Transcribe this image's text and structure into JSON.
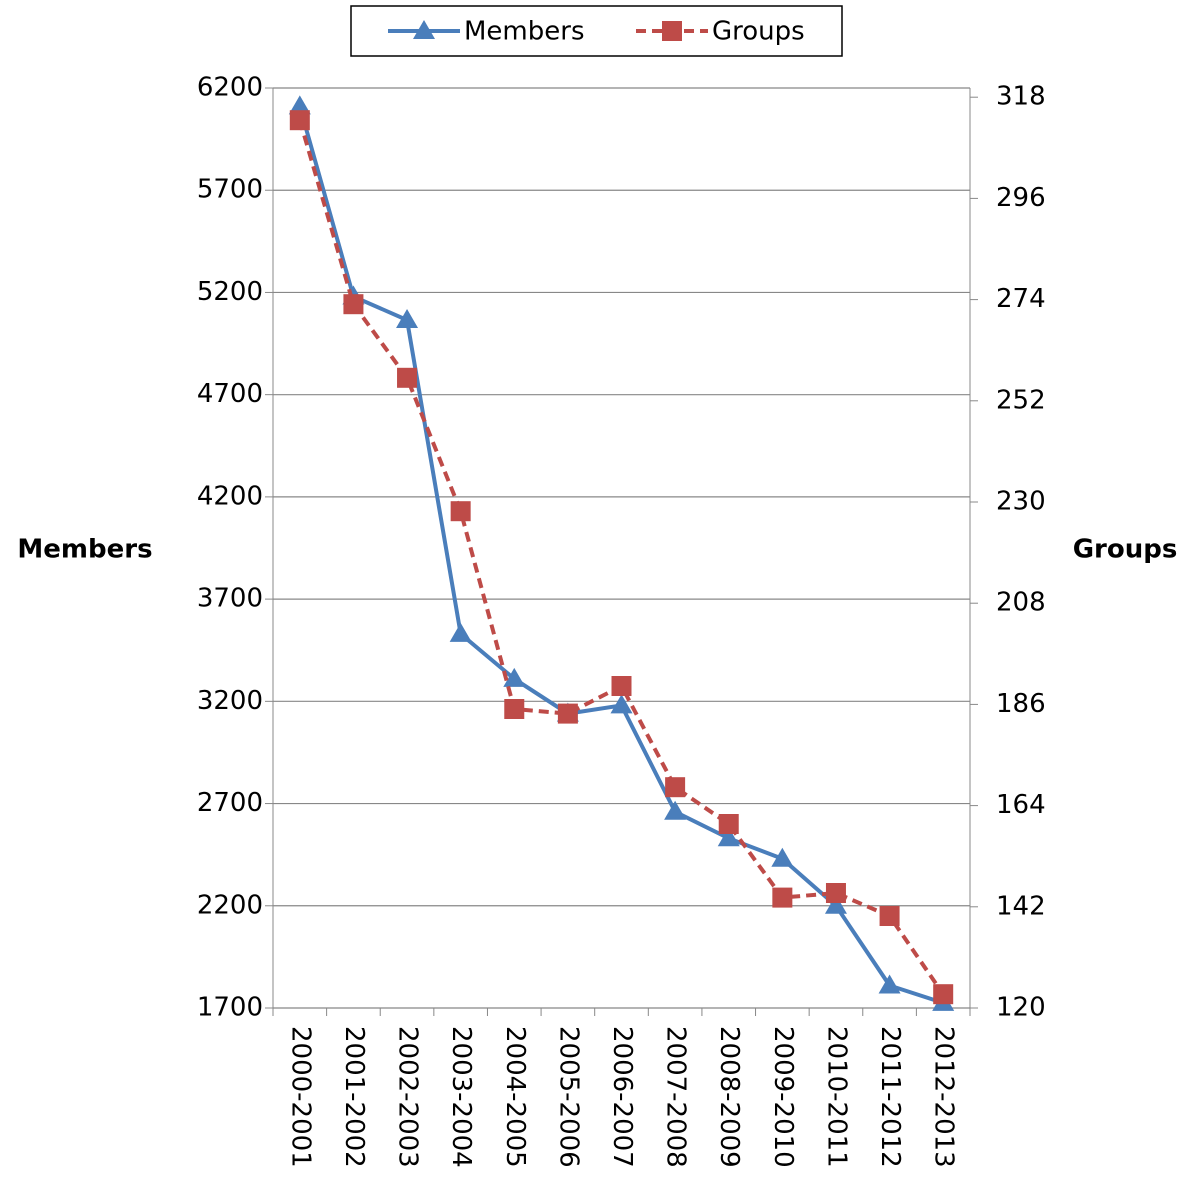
{
  "chart_data": {
    "type": "line",
    "categories": [
      "2000-2001",
      "2001-2002",
      "2002-2003",
      "2003-2004",
      "2004-2005",
      "2005-2006",
      "2006-2007",
      "2007-2008",
      "2008-2009",
      "2009-2010",
      "2010-2011",
      "2011-2012",
      "2012-2013"
    ],
    "series": [
      {
        "name": "Members",
        "color": "#4a7ebb",
        "marker": "triangle",
        "values": [
          6110,
          5180,
          5065,
          3530,
          3310,
          3140,
          3180,
          2660,
          2530,
          2430,
          2200,
          1810,
          1725
        ]
      },
      {
        "name": "Groups",
        "color": "#be4b48",
        "marker": "square",
        "dashed": true,
        "axis": "y2",
        "values": [
          313,
          273,
          257,
          228,
          185,
          184,
          190,
          168,
          160,
          144,
          145,
          140,
          123
        ]
      }
    ],
    "ylabel": "Members",
    "y2label": "Groups",
    "ylim": [
      1700,
      6200
    ],
    "yticks": [
      1700,
      2200,
      2700,
      3200,
      3700,
      4200,
      4700,
      5200,
      5700,
      6200
    ],
    "y2lim": [
      120,
      320
    ],
    "y2ticks": [
      120,
      142,
      164,
      186,
      208,
      230,
      252,
      274,
      296,
      318
    ],
    "grid": true,
    "legend": "top"
  }
}
